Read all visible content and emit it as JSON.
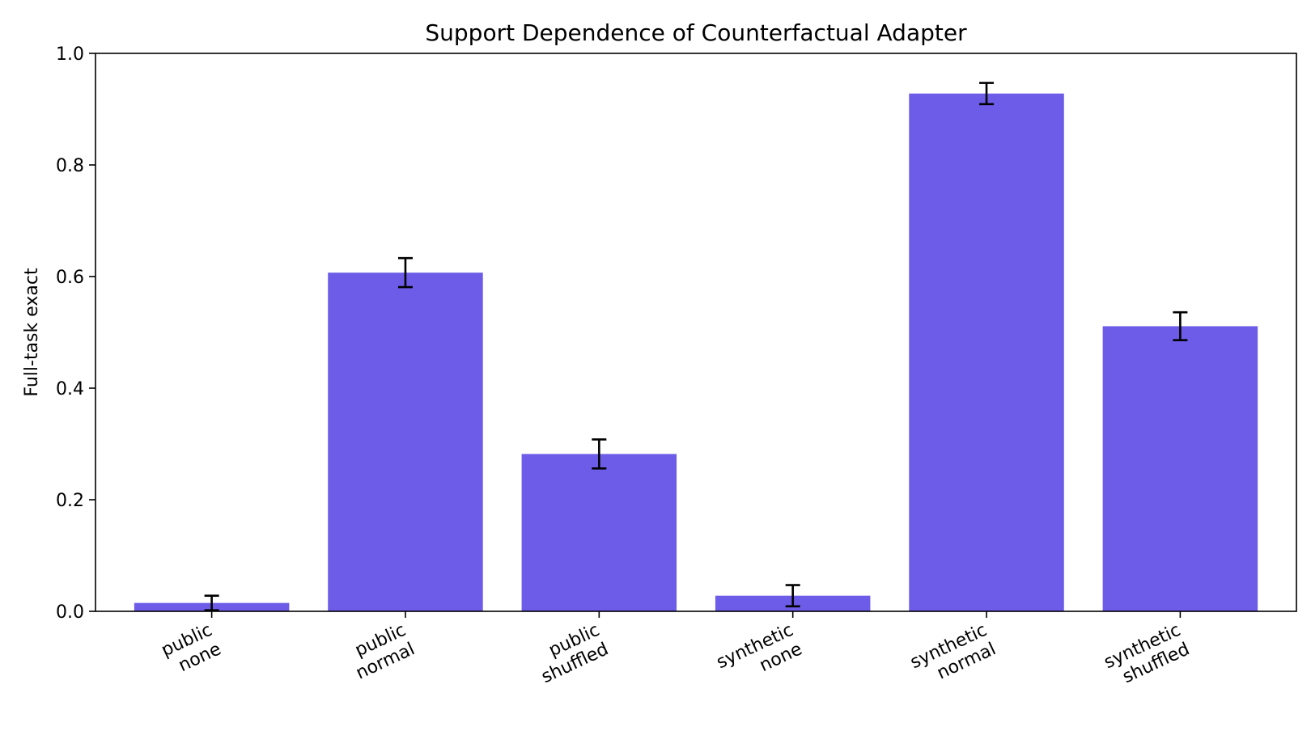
{
  "chart_data": {
    "type": "bar",
    "title": "Support Dependence of Counterfactual Adapter",
    "xlabel": "",
    "ylabel": "Full-task exact",
    "ylim": [
      0,
      1.0
    ],
    "yticks": [
      "0.0",
      "0.2",
      "0.4",
      "0.6",
      "0.8",
      "1.0"
    ],
    "grid": false,
    "categories": [
      [
        "public",
        "none"
      ],
      [
        "public",
        "normal"
      ],
      [
        "public",
        "shuffled"
      ],
      [
        "synthetic",
        "none"
      ],
      [
        "synthetic",
        "normal"
      ],
      [
        "synthetic",
        "shuffled"
      ]
    ],
    "values": [
      0.015,
      0.607,
      0.282,
      0.028,
      0.928,
      0.511
    ],
    "errors": [
      0.013,
      0.026,
      0.026,
      0.019,
      0.019,
      0.025
    ],
    "bar_color": "#6c5ce7",
    "error_color": "#000000"
  }
}
